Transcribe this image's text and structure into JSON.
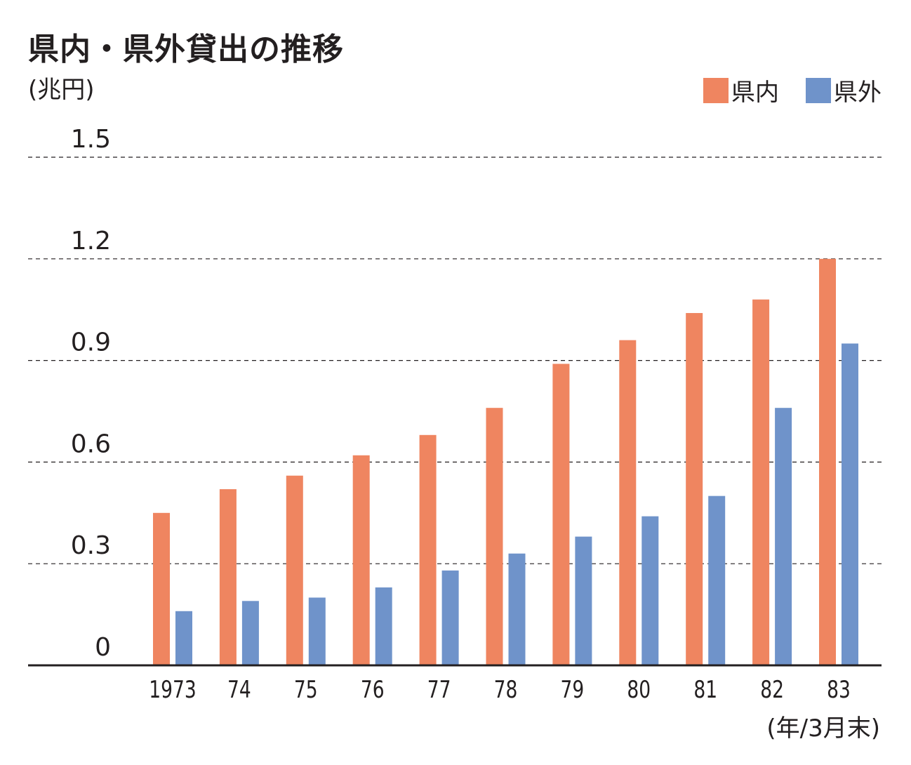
{
  "title": "県内・県外貸出の推移",
  "unit_label": "(兆円)",
  "x_unit_label": "(年/3月末)",
  "colors": {
    "県内": "#ef8560",
    "県外": "#6f93ca"
  },
  "chart_data": {
    "type": "bar",
    "title": "県内・県外貸出の推移",
    "ylabel": "(兆円)",
    "xlabel": "(年/3月末)",
    "categories": [
      "1973",
      "74",
      "75",
      "76",
      "77",
      "78",
      "79",
      "80",
      "81",
      "82",
      "83"
    ],
    "series": [
      {
        "name": "県内",
        "values": [
          0.45,
          0.52,
          0.56,
          0.62,
          0.68,
          0.76,
          0.89,
          0.96,
          1.04,
          1.08,
          1.2
        ]
      },
      {
        "name": "県外",
        "values": [
          0.16,
          0.19,
          0.2,
          0.23,
          0.28,
          0.33,
          0.38,
          0.44,
          0.5,
          0.76,
          0.95
        ]
      }
    ],
    "yticks": [
      "0",
      "0.3",
      "0.6",
      "0.9",
      "1.2",
      "1.5"
    ],
    "ylim": [
      0,
      1.5
    ],
    "grid": true,
    "legend": "top-right"
  }
}
